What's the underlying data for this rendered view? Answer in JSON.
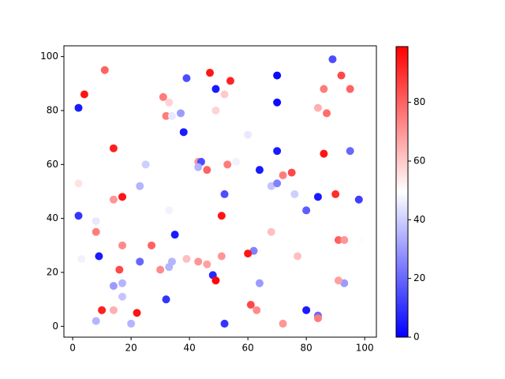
{
  "chart_data": {
    "type": "scatter",
    "x": [
      47,
      4,
      11,
      2,
      39,
      49,
      54,
      52,
      70,
      70,
      89,
      92,
      86,
      95,
      31,
      33,
      32,
      34,
      37,
      38,
      49,
      84,
      87,
      60,
      14,
      25,
      43,
      44,
      43,
      46,
      53,
      56,
      64,
      70,
      86,
      95,
      2,
      23,
      68,
      70,
      72,
      75,
      2,
      8,
      14,
      17,
      52,
      76,
      84,
      90,
      98,
      33,
      51,
      80,
      8,
      3,
      9,
      17,
      27,
      35,
      62,
      60,
      68,
      77,
      91,
      93,
      99,
      23,
      39,
      43,
      46,
      51,
      34,
      33,
      30,
      16,
      14,
      17,
      17,
      48,
      49,
      64,
      93,
      91,
      32,
      10,
      14,
      22,
      8,
      20,
      52,
      61,
      63,
      72,
      80,
      84,
      84
    ],
    "y": [
      94,
      86,
      95,
      81,
      92,
      88,
      91,
      86,
      93,
      83,
      99,
      93,
      88,
      88,
      85,
      83,
      78,
      78,
      79,
      72,
      80,
      81,
      79,
      71,
      66,
      60,
      61,
      61,
      59,
      58,
      60,
      61,
      58,
      65,
      64,
      65,
      53,
      52,
      52,
      53,
      56,
      57,
      41,
      39,
      47,
      48,
      49,
      49,
      48,
      49,
      47,
      43,
      41,
      43,
      35,
      25,
      26,
      30,
      30,
      34,
      28,
      27,
      35,
      26,
      32,
      32,
      32,
      24,
      25,
      24,
      23,
      26,
      24,
      22,
      21,
      21,
      15,
      16,
      11,
      19,
      17,
      16,
      16,
      17,
      10,
      6,
      6,
      5,
      2,
      1,
      1,
      8,
      6,
      1,
      6,
      4,
      3
    ],
    "c": [
      95,
      95,
      80,
      5,
      15,
      5,
      92,
      60,
      2,
      2,
      15,
      85,
      75,
      80,
      75,
      58,
      75,
      45,
      30,
      5,
      58,
      65,
      78,
      45,
      93,
      40,
      70,
      15,
      35,
      80,
      75,
      47,
      5,
      5,
      95,
      20,
      55,
      35,
      38,
      25,
      75,
      85,
      10,
      45,
      70,
      95,
      15,
      40,
      5,
      90,
      12,
      47,
      95,
      18,
      75,
      47,
      5,
      72,
      80,
      5,
      25,
      95,
      62,
      62,
      80,
      70,
      50,
      20,
      62,
      70,
      68,
      70,
      35,
      35,
      72,
      85,
      30,
      35,
      38,
      8,
      98,
      30,
      30,
      68,
      10,
      93,
      65,
      95,
      35,
      35,
      10,
      85,
      72,
      70,
      5,
      20,
      75
    ],
    "cmap": "bwr",
    "clim": [
      0,
      99
    ],
    "cticks": [
      0,
      20,
      40,
      60,
      80
    ],
    "xlim": [
      -3,
      104
    ],
    "ylim": [
      -4,
      104
    ],
    "xticks": [
      0,
      20,
      40,
      60,
      80,
      100
    ],
    "yticks": [
      0,
      20,
      40,
      60,
      80,
      100
    ]
  }
}
